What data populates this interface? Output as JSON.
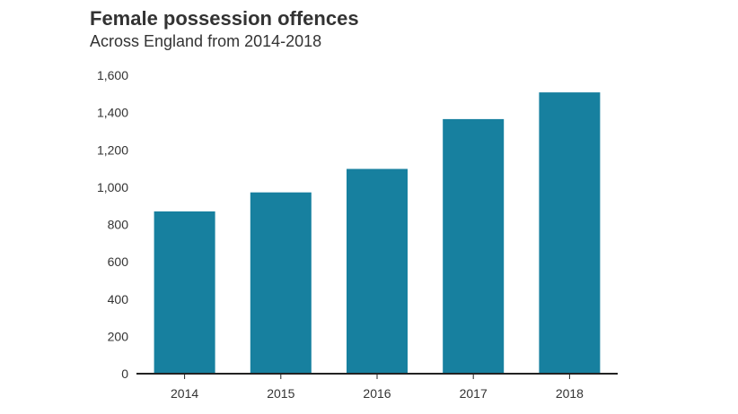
{
  "chart_data": {
    "type": "bar",
    "title": "Female possession offences",
    "subtitle": "Across England from 2014-2018",
    "xlabel": "",
    "ylabel": "",
    "categories": [
      "2014",
      "2015",
      "2016",
      "2017",
      "2018"
    ],
    "values": [
      870,
      972,
      1098,
      1365,
      1508
    ],
    "ylim": [
      0,
      1600
    ],
    "yticks": [
      0,
      200,
      400,
      600,
      800,
      1000,
      1200,
      1400,
      1600
    ],
    "ytick_labels": [
      "0",
      "200",
      "400",
      "600",
      "800",
      "1,000",
      "1,200",
      "1,400",
      "1,600"
    ],
    "grid": false,
    "legend": "none",
    "bar_color": "#17809f",
    "axis_color": "#222222"
  }
}
